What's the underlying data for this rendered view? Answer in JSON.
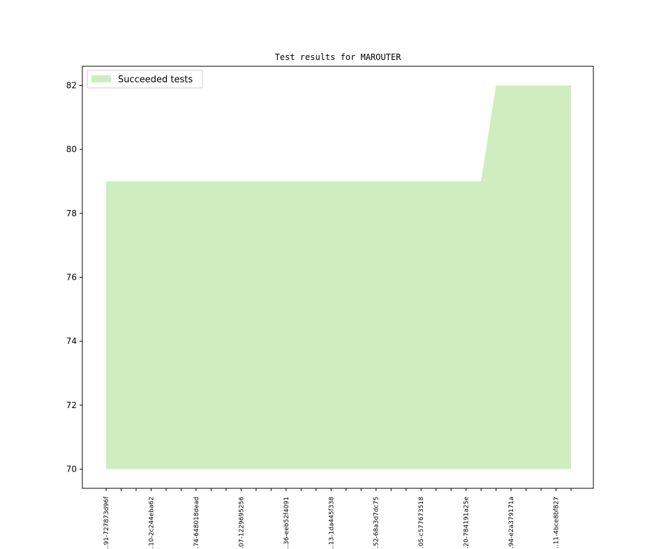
{
  "chart_data": {
    "type": "area",
    "title": "Test results for MAROUTER",
    "xlabel": "",
    "ylabel": "",
    "ylim": [
      69.4,
      82.6
    ],
    "yticks": [
      70,
      72,
      74,
      76,
      78,
      80,
      82
    ],
    "legend": {
      "position": "top-left",
      "entries": [
        "Succeeded tests"
      ]
    },
    "grid": false,
    "x_tick_labels": [
      "…91-727873d96f",
      "…10-2c244eba62",
      "…74-648018dead",
      "…07-1229695256",
      "…36-eeb52f4091",
      "…13-1da445f338",
      "…52-68a3d7dc75",
      "…05-c577673518",
      "…20-784191a25e",
      "…94-e2a379171a",
      "…11-4bce8bf827"
    ],
    "labeled_tick_every": 3,
    "series": [
      {
        "name": "Succeeded tests",
        "color": "#cfedbf",
        "baseline": 70,
        "values": [
          79,
          79,
          79,
          79,
          79,
          79,
          79,
          79,
          79,
          79,
          79,
          79,
          79,
          79,
          79,
          79,
          79,
          79,
          79,
          79,
          79,
          79,
          79,
          79,
          79,
          79,
          82,
          82,
          82,
          82,
          82,
          82
        ]
      }
    ]
  }
}
